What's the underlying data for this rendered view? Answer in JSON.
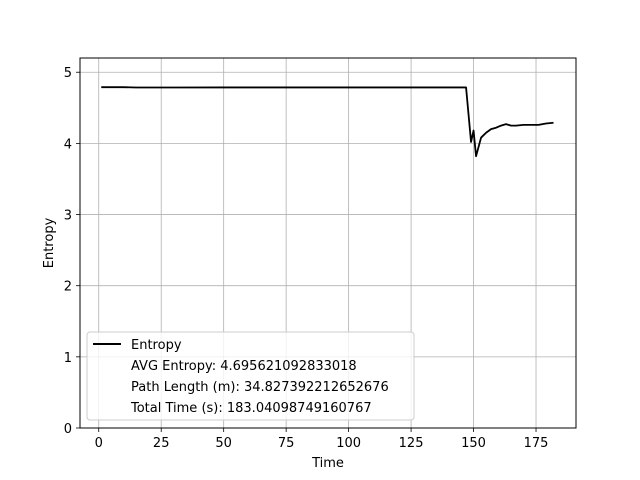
{
  "chart_data": {
    "type": "line",
    "xlabel": "Time",
    "ylabel": "Entropy",
    "xlim": [
      -7.5,
      191
    ],
    "ylim": [
      0,
      5.2
    ],
    "xticks": [
      0,
      25,
      50,
      75,
      100,
      125,
      150,
      175
    ],
    "yticks": [
      0,
      1,
      2,
      3,
      4,
      5
    ],
    "grid": true,
    "legend_position": "lower-left",
    "series": [
      {
        "name": "Entropy",
        "color": "#000000",
        "points": [
          [
            1,
            4.79
          ],
          [
            5,
            4.79
          ],
          [
            10,
            4.79
          ],
          [
            15,
            4.785
          ],
          [
            20,
            4.785
          ],
          [
            30,
            4.785
          ],
          [
            50,
            4.786
          ],
          [
            75,
            4.786
          ],
          [
            100,
            4.786
          ],
          [
            125,
            4.786
          ],
          [
            140,
            4.786
          ],
          [
            147,
            4.786
          ],
          [
            149,
            4.02
          ],
          [
            150,
            4.18
          ],
          [
            151,
            3.82
          ],
          [
            152,
            3.95
          ],
          [
            153,
            4.08
          ],
          [
            155,
            4.15
          ],
          [
            157,
            4.2
          ],
          [
            159,
            4.22
          ],
          [
            161,
            4.25
          ],
          [
            163,
            4.27
          ],
          [
            165,
            4.25
          ],
          [
            167,
            4.25
          ],
          [
            170,
            4.26
          ],
          [
            173,
            4.26
          ],
          [
            176,
            4.26
          ],
          [
            179,
            4.28
          ],
          [
            182,
            4.29
          ]
        ]
      }
    ],
    "legend_lines": [
      "AVG Entropy: 4.695621092833018",
      "Path Length (m): 34.827392212652676",
      "Total Time (s): 183.04098749160767"
    ]
  }
}
